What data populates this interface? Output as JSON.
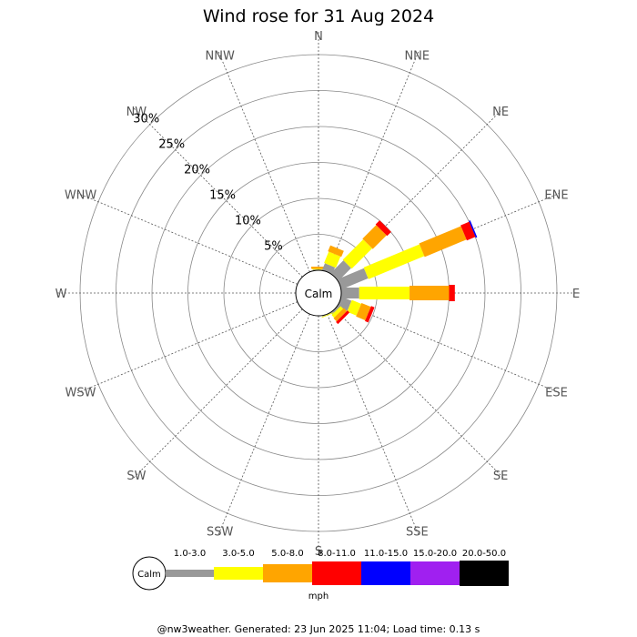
{
  "chart_data": {
    "type": "wind-rose",
    "title": "Wind rose for 31 Aug 2024",
    "directions": [
      "N",
      "NNE",
      "NE",
      "ENE",
      "E",
      "ESE",
      "SE",
      "SSE",
      "S",
      "SSW",
      "SW",
      "WSW",
      "W",
      "WNW",
      "NW",
      "NNW"
    ],
    "radial_ticks": [
      "5%",
      "10%",
      "15%",
      "20%",
      "25%",
      "30%"
    ],
    "radial_max": 30,
    "grid": true,
    "calm_label": "Calm",
    "speed_unit": "mph",
    "speed_bins": [
      {
        "label": "1.0-3.0",
        "color": "#999999"
      },
      {
        "label": "3.0-5.0",
        "color": "#ffff00"
      },
      {
        "label": "5.0-8.0",
        "color": "#ffa500"
      },
      {
        "label": "8.0-11.0",
        "color": "#ff0000"
      },
      {
        "label": "11.0-15.0",
        "color": "#0000ff"
      },
      {
        "label": "15.0-20.0",
        "color": "#a020f0"
      },
      {
        "label": "20.0-50.0",
        "color": "#000000"
      }
    ],
    "series": [
      {
        "direction": "N",
        "values": [
          0.1,
          0.1,
          0.3,
          0,
          0,
          0,
          0
        ]
      },
      {
        "direction": "NNE",
        "values": [
          1.0,
          1.7,
          0.9,
          0,
          0,
          0,
          0
        ]
      },
      {
        "direction": "NE",
        "values": [
          2.5,
          4.0,
          2.7,
          0.8,
          0,
          0,
          0
        ]
      },
      {
        "direction": "ENE",
        "values": [
          4.0,
          8.4,
          6.3,
          1.3,
          0.2,
          0,
          0
        ]
      },
      {
        "direction": "E",
        "values": [
          2.5,
          7.0,
          5.5,
          0.8,
          0,
          0,
          0
        ]
      },
      {
        "direction": "ESE",
        "values": [
          1.5,
          1.4,
          1.4,
          0.5,
          0,
          0,
          0
        ]
      },
      {
        "direction": "SE",
        "values": [
          0.3,
          0.5,
          0.6,
          0.4,
          0,
          0,
          0
        ]
      },
      {
        "direction": "SSE",
        "values": [
          0.1,
          0.1,
          0,
          0,
          0,
          0,
          0
        ]
      },
      {
        "direction": "S",
        "values": [
          0,
          0,
          0,
          0,
          0,
          0,
          0
        ]
      },
      {
        "direction": "SSW",
        "values": [
          0,
          0,
          0,
          0,
          0,
          0,
          0
        ]
      },
      {
        "direction": "SW",
        "values": [
          0,
          0,
          0,
          0,
          0,
          0,
          0
        ]
      },
      {
        "direction": "WSW",
        "values": [
          0,
          0,
          0,
          0,
          0,
          0,
          0
        ]
      },
      {
        "direction": "W",
        "values": [
          0,
          0,
          0,
          0,
          0,
          0,
          0
        ]
      },
      {
        "direction": "WNW",
        "values": [
          0,
          0,
          0,
          0,
          0,
          0,
          0
        ]
      },
      {
        "direction": "NW",
        "values": [
          0,
          0,
          0,
          0,
          0,
          0,
          0
        ]
      },
      {
        "direction": "NNW",
        "values": [
          0,
          0,
          0,
          0,
          0,
          0,
          0
        ]
      }
    ]
  },
  "footer": "@nw3weather. Generated: 23 Jun 2025 11:04; Load time: 0.13 s"
}
